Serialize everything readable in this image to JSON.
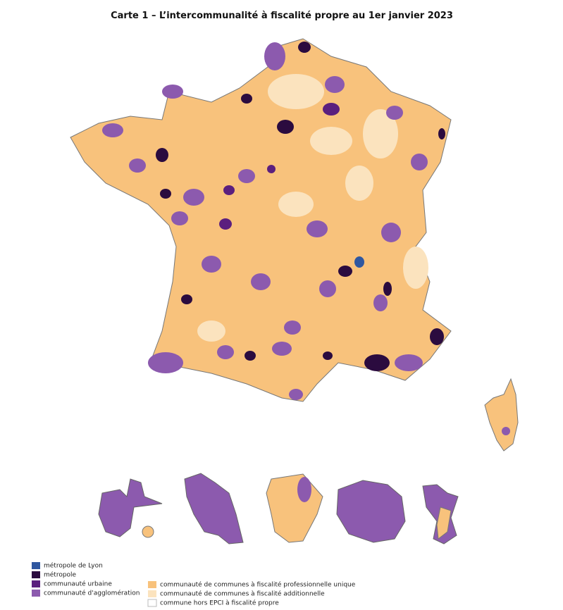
{
  "title": "Carte 1 – L’intercommunalité à fiscalité propre au 1er janvier 2023",
  "legend": {
    "left": [
      {
        "label": "métropole de Lyon",
        "color": "#2f57a0"
      },
      {
        "label": "métropole",
        "color": "#2b0b3f"
      },
      {
        "label": "communauté urbaine",
        "color": "#5b1f7e"
      },
      {
        "label": "communauté d'agglomération",
        "color": "#8c5aae"
      }
    ],
    "right": [
      {
        "label": "communauté de communes à fiscalité professionnelle unique",
        "color": "#f8c27c"
      },
      {
        "label": "communauté de communes à fiscalité additionnelle",
        "color": "#fbe3be"
      },
      {
        "label": "commune hors EPCI à fiscalité propre",
        "color": "#ffffff"
      }
    ]
  }
}
